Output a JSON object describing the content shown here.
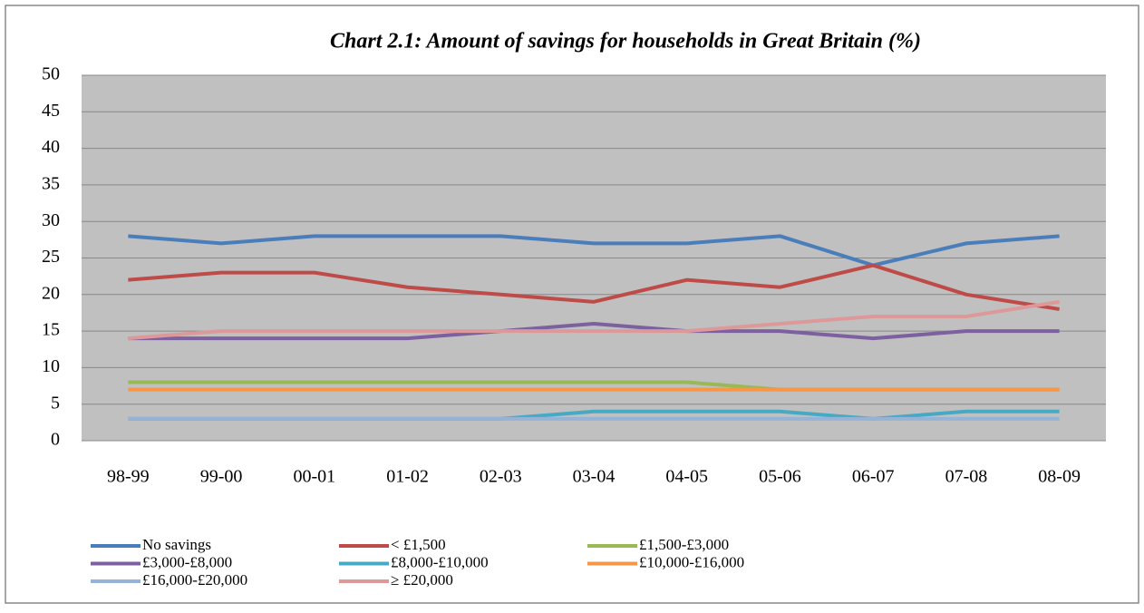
{
  "chart_data": {
    "type": "line",
    "title": "Chart 2.1: Amount of savings for households in Great Britain (%)",
    "categories": [
      "98-99",
      "99-00",
      "00-01",
      "01-02",
      "02-03",
      "03-04",
      "04-05",
      "05-06",
      "06-07",
      "07-08",
      "08-09"
    ],
    "series": [
      {
        "name": "No savings",
        "color": "#4a7ebb",
        "values": [
          28,
          27,
          28,
          28,
          28,
          27,
          27,
          28,
          24,
          27,
          28
        ]
      },
      {
        "name": "< £1,500",
        "color": "#be4b48",
        "values": [
          22,
          23,
          23,
          21,
          20,
          19,
          22,
          21,
          24,
          20,
          18
        ]
      },
      {
        "name": "£1,500-£3,000",
        "color": "#98b954",
        "values": [
          8,
          8,
          8,
          8,
          8,
          8,
          8,
          7,
          7,
          7,
          7
        ]
      },
      {
        "name": "£3,000-£8,000",
        "color": "#7d60a0",
        "values": [
          14,
          14,
          14,
          14,
          15,
          16,
          15,
          15,
          14,
          15,
          15
        ]
      },
      {
        "name": "£8,000-£10,000",
        "color": "#46aac5",
        "values": [
          3,
          3,
          3,
          3,
          3,
          4,
          4,
          4,
          3,
          4,
          4
        ]
      },
      {
        "name": "£10,000-£16,000",
        "color": "#f79646",
        "values": [
          7,
          7,
          7,
          7,
          7,
          7,
          7,
          7,
          7,
          7,
          7
        ]
      },
      {
        "name": "£16,000-£20,000",
        "color": "#94b3d6",
        "values": [
          3,
          3,
          3,
          3,
          3,
          3,
          3,
          3,
          3,
          3,
          3
        ]
      },
      {
        "name": "≥ £20,000",
        "color": "#dd9999",
        "values": [
          14,
          15,
          15,
          15,
          15,
          15,
          15,
          16,
          17,
          17,
          19
        ]
      }
    ],
    "ylim": [
      0,
      50
    ],
    "yticks": [
      0,
      5,
      10,
      15,
      20,
      25,
      30,
      35,
      40,
      45,
      50
    ],
    "grid": true
  }
}
